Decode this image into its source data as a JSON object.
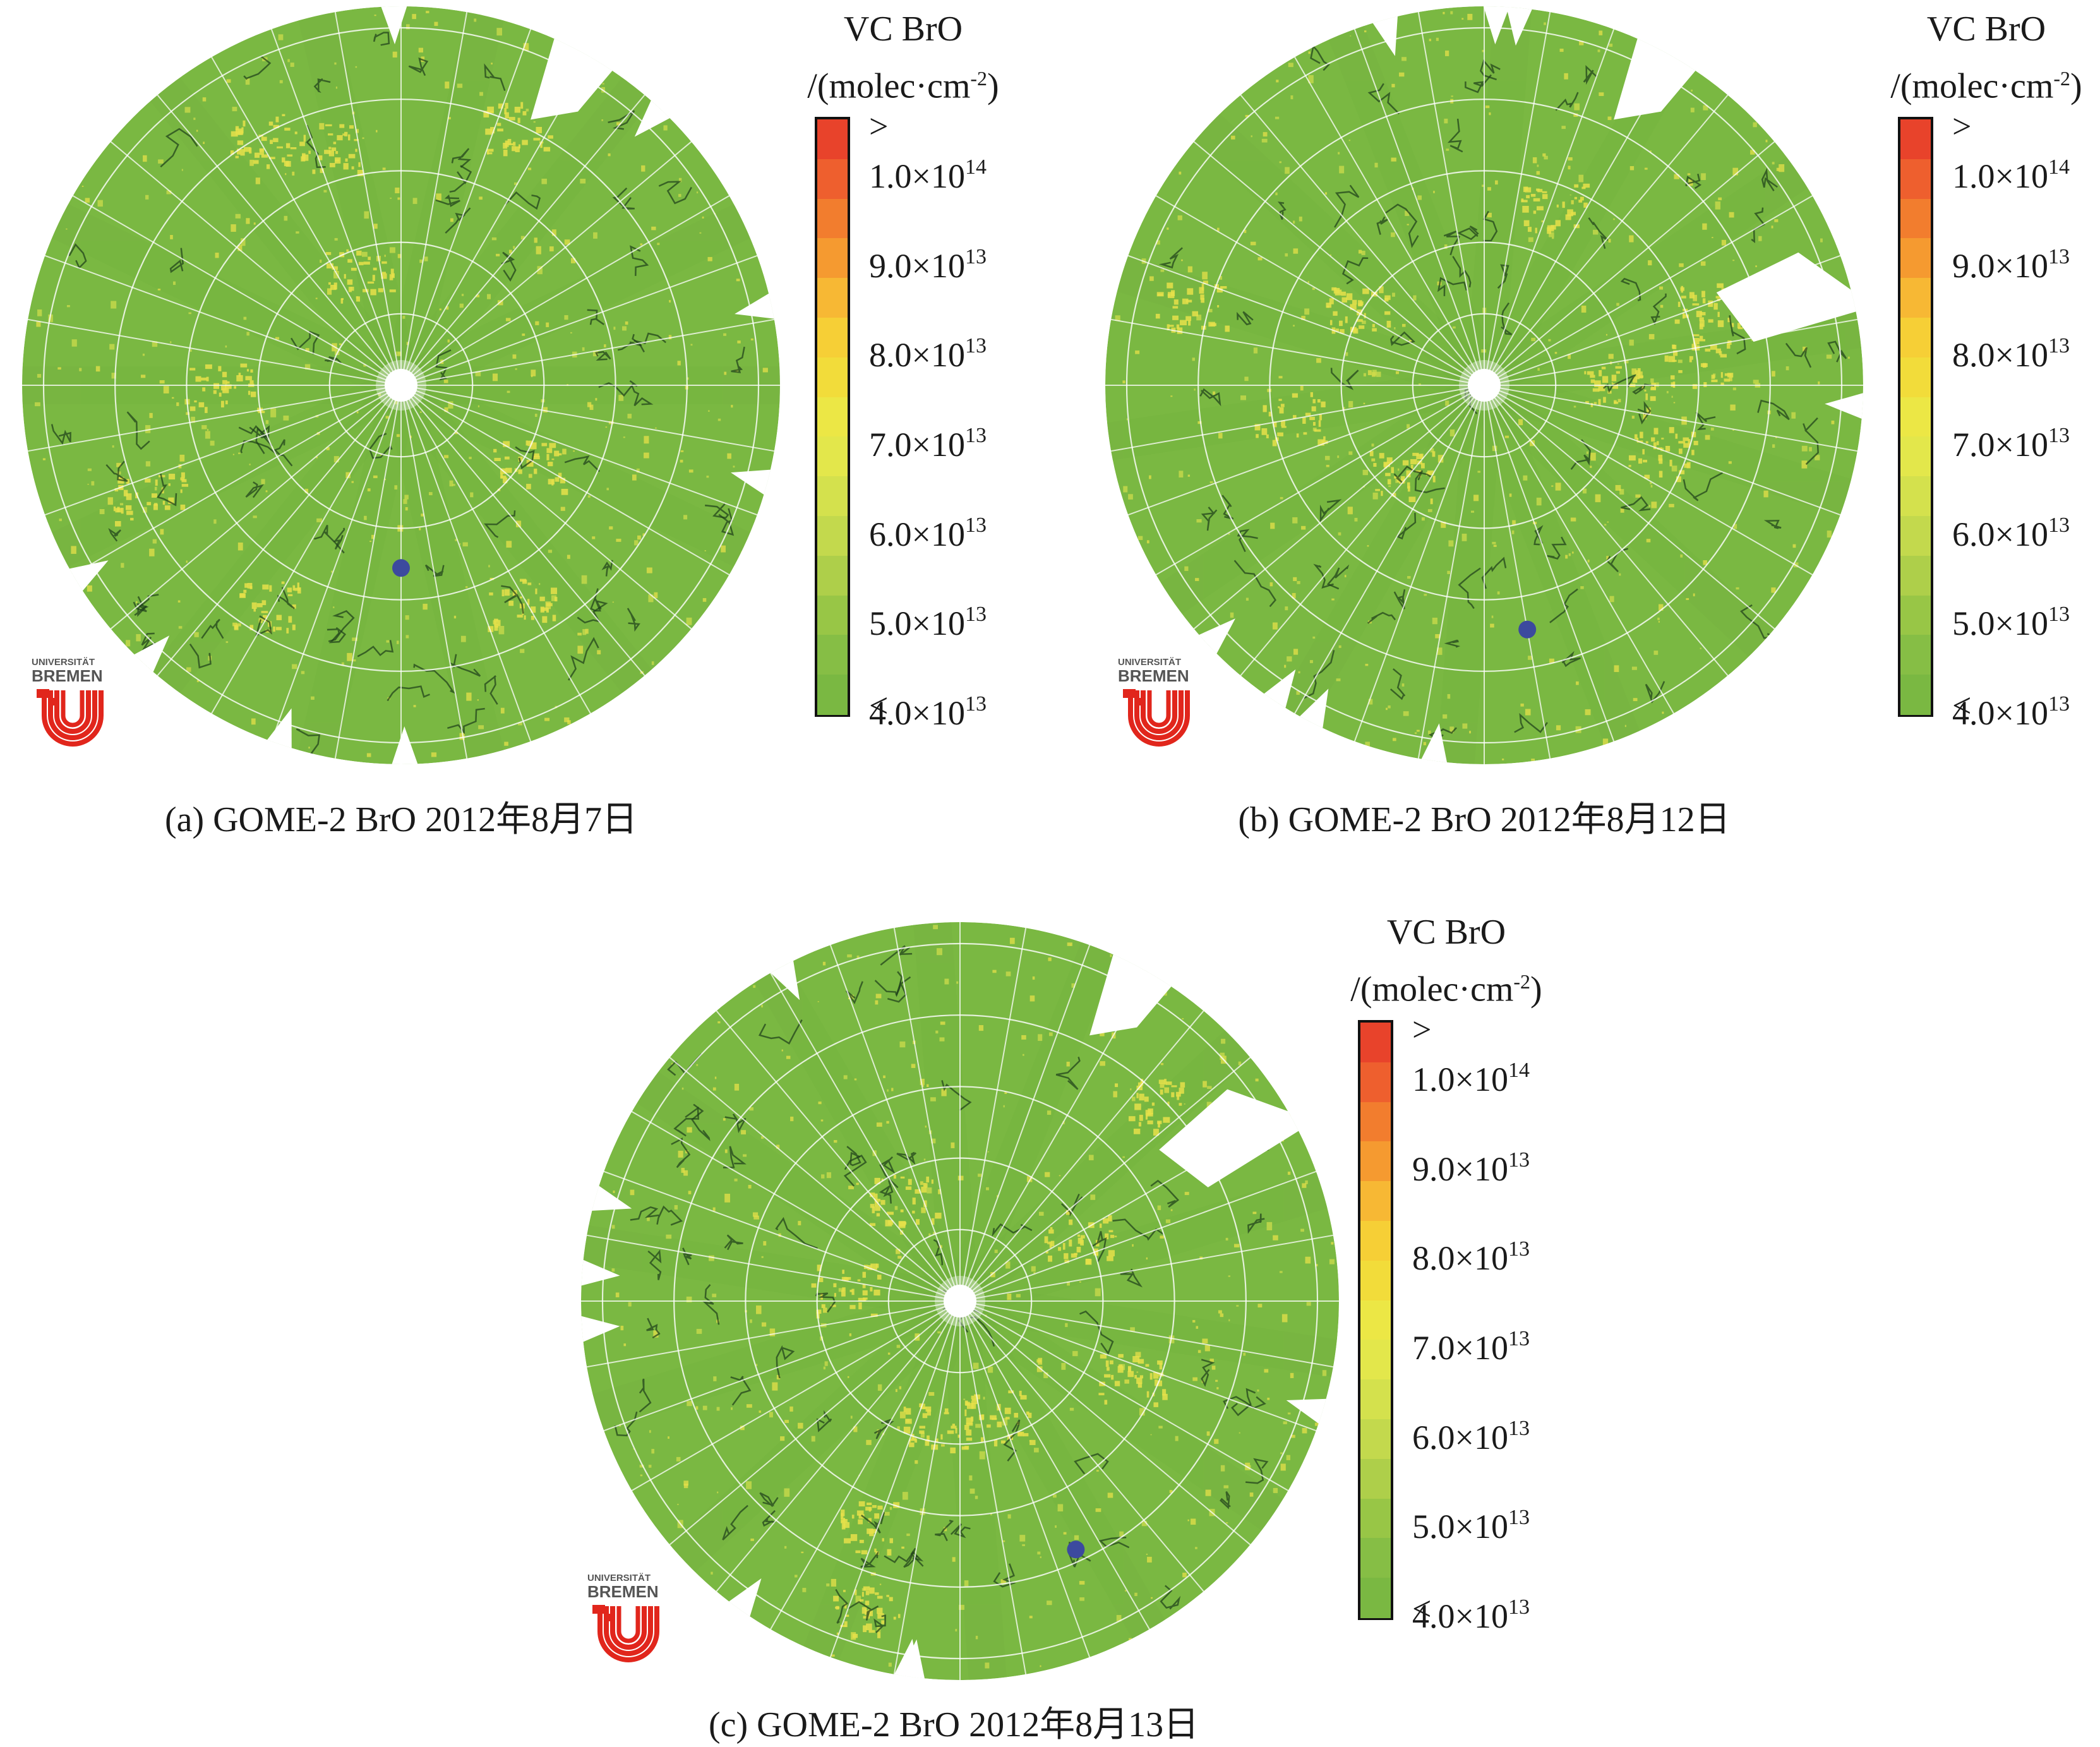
{
  "panels": [
    {
      "id": "a",
      "caption": "(a) GOME-2 BrO 2012年8月7日",
      "marker": {
        "lat": 62,
        "lon": 0
      }
    },
    {
      "id": "b",
      "caption": "(b) GOME-2 BrO 2012年8月12日",
      "marker": {
        "lat": 52,
        "lon": -10
      }
    },
    {
      "id": "c",
      "caption": "(c) GOME-2 BrO 2012年8月13日",
      "marker": {
        "lat": 48,
        "lon": -25
      }
    }
  ],
  "legend": {
    "title_line1": "VC BrO",
    "title_line2": "/(molec·cm",
    "title_sup": "-2",
    "title_close": ")",
    "top_label": ">",
    "bottom_label": "<",
    "ticks": [
      {
        "mantissa": "1.0×10",
        "exp": "14",
        "value": 100000000000000.0
      },
      {
        "mantissa": "9.0×10",
        "exp": "13",
        "value": 90000000000000.0
      },
      {
        "mantissa": "8.0×10",
        "exp": "13",
        "value": 80000000000000.0
      },
      {
        "mantissa": "7.0×10",
        "exp": "13",
        "value": 70000000000000.0
      },
      {
        "mantissa": "6.0×10",
        "exp": "13",
        "value": 60000000000000.0
      },
      {
        "mantissa": "5.0×10",
        "exp": "13",
        "value": 50000000000000.0
      },
      {
        "mantissa": "4.0×10",
        "exp": "13",
        "value": 40000000000000.0
      }
    ],
    "colors": [
      "#e8432b",
      "#ee5f2e",
      "#f27d2e",
      "#f59a30",
      "#f7b834",
      "#f6cf36",
      "#f2dc3a",
      "#ece745",
      "#e3e74b",
      "#d4e14d",
      "#c3d94d",
      "#aecf4a",
      "#98c646",
      "#86be45",
      "#7ab842"
    ]
  },
  "map_colors": {
    "background": "#7ab842",
    "hotspot": "#e6e04a",
    "coast": "#1d3d1a",
    "grid": "#ffffff",
    "marker": "#3c4a9e"
  },
  "logo": {
    "line1": "UNIVERSITÄT",
    "line2": "BREMEN",
    "color": "#e1261c"
  }
}
